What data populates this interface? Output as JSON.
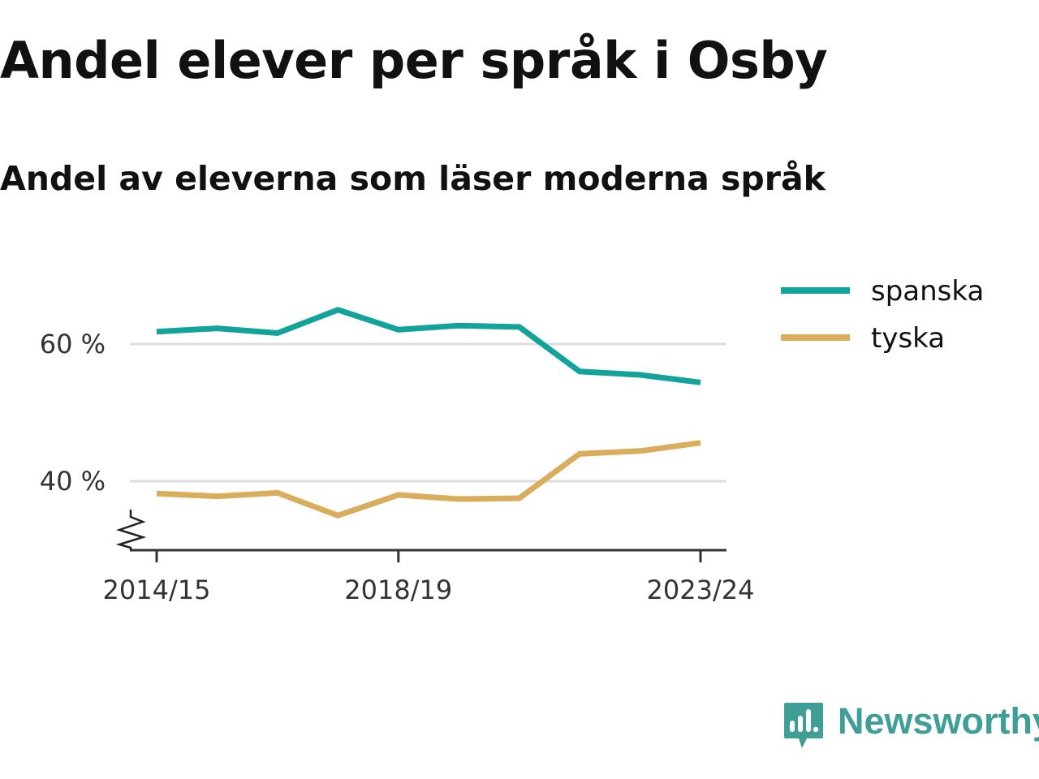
{
  "header": {
    "title": "Andel elever per språk i Osby",
    "subtitle": "Andel av eleverna som läser moderna språk"
  },
  "brand": {
    "name": "Newsworthy",
    "icon": "newsworthy-logo-icon",
    "color": "#3f9e95"
  },
  "chart_data": {
    "type": "line",
    "title": "Andel elever per språk i Osby",
    "subtitle": "Andel av eleverna som läser moderna språk",
    "xlabel": "",
    "ylabel": "",
    "x": [
      "2014/15",
      "2015/16",
      "2016/17",
      "2017/18",
      "2018/19",
      "2019/20",
      "2020/21",
      "2021/22",
      "2022/23",
      "2023/24"
    ],
    "x_tick_labels": [
      "2014/15",
      "2018/19",
      "2023/24"
    ],
    "y_ticks": [
      40,
      60
    ],
    "y_tick_labels": [
      "40 %",
      "60 %"
    ],
    "y_unit": "%",
    "ylim": [
      30,
      70
    ],
    "y_axis_break": true,
    "grid": "horizontal",
    "legend_position": "top-right",
    "series": [
      {
        "name": "spanska",
        "color": "#12a39a",
        "values": [
          61.8,
          62.3,
          61.6,
          65.0,
          62.1,
          62.7,
          62.5,
          56.0,
          55.5,
          54.4
        ]
      },
      {
        "name": "tyska",
        "color": "#d9ad5b",
        "values": [
          38.2,
          37.8,
          38.3,
          35.0,
          38.0,
          37.4,
          37.5,
          44.0,
          44.4,
          45.6
        ]
      }
    ]
  }
}
